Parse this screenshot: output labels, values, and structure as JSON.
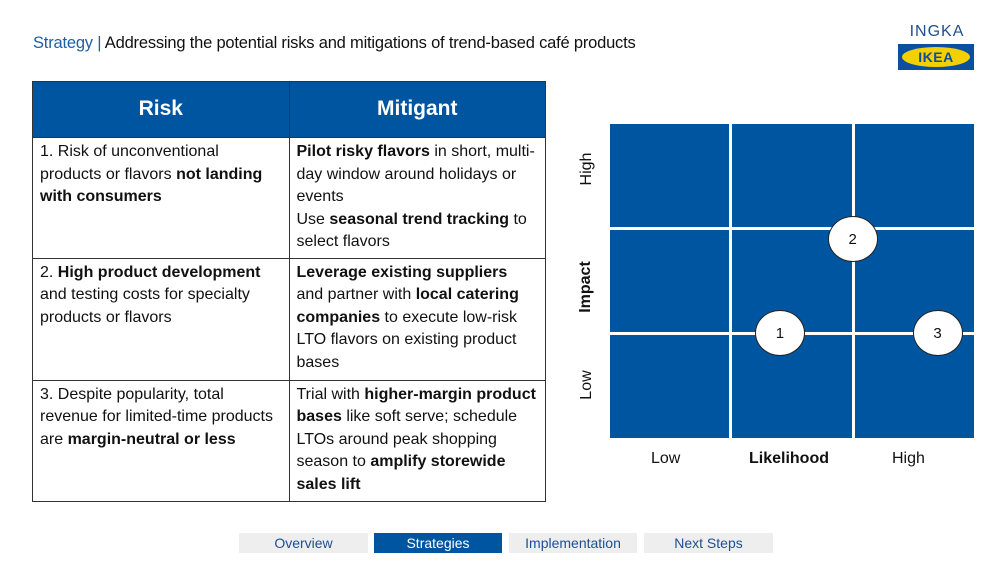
{
  "header": {
    "section": "Strategy |",
    "title": " Addressing the potential risks and mitigations of trend-based café products"
  },
  "logo": {
    "top_text": "INGKA",
    "brand": "IKEA"
  },
  "table": {
    "headers": [
      "Risk",
      "Mitigant"
    ],
    "rows": [
      {
        "risk": [
          {
            "t": "1. Risk of unconventional products or flavors "
          },
          {
            "t": "not landing with consumers",
            "b": true
          }
        ],
        "mitigant": [
          {
            "t": "Pilot risky flavors",
            "b": true
          },
          {
            "t": " in short, multi-day window around holidays or events"
          },
          {
            "br": true
          },
          {
            "t": "Use "
          },
          {
            "t": "seasonal trend tracking",
            "b": true
          },
          {
            "t": " to select flavors"
          }
        ]
      },
      {
        "risk": [
          {
            "t": "2. "
          },
          {
            "t": "High product development",
            "b": true
          },
          {
            "t": " and testing costs for specialty products or flavors"
          }
        ],
        "mitigant": [
          {
            "t": "Leverage existing suppliers",
            "b": true
          },
          {
            "t": " and partner with "
          },
          {
            "t": "local catering companies",
            "b": true
          },
          {
            "t": " to execute low-risk LTO flavors on existing product bases"
          }
        ]
      },
      {
        "risk": [
          {
            "t": "3. Despite popularity, total revenue for limited-time products are "
          },
          {
            "t": "margin-neutral or less",
            "b": true
          }
        ],
        "mitigant": [
          {
            "t": "Trial with "
          },
          {
            "t": "higher-margin product bases",
            "b": true
          },
          {
            "t": " like soft serve; schedule LTOs around peak shopping season to "
          },
          {
            "t": "amplify storewide sales lift",
            "b": true
          }
        ]
      }
    ]
  },
  "matrix": {
    "x_axis": {
      "label": "Likelihood",
      "low": "Low",
      "high": "High"
    },
    "y_axis": {
      "label": "Impact",
      "low": "Low",
      "high": "High"
    },
    "grid": [
      3,
      3
    ],
    "risks": [
      {
        "id": "1",
        "likelihood": 1.4,
        "impact": 1.0
      },
      {
        "id": "2",
        "likelihood": 2.0,
        "impact": 1.9
      },
      {
        "id": "3",
        "likelihood": 2.7,
        "impact": 1.0
      }
    ]
  },
  "nav": {
    "tabs": [
      {
        "label": "Overview",
        "active": false
      },
      {
        "label": "Strategies",
        "active": true
      },
      {
        "label": "Implementation",
        "active": false
      },
      {
        "label": "Next Steps",
        "active": false
      }
    ]
  }
}
